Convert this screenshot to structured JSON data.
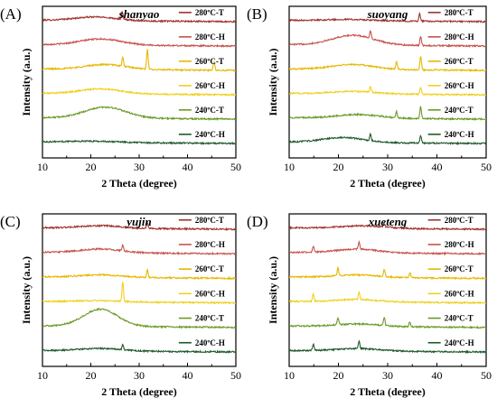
{
  "figure": {
    "x_axis_label": "2 Theta (degree)",
    "y_axis_label": "Intensity (a.u.)",
    "x_ticks": [
      "10",
      "20",
      "30",
      "40",
      "50"
    ]
  },
  "chart_data": [
    {
      "type": "line",
      "panel_label": "(A)",
      "title": "shanyao",
      "xlabel": "2 Theta (degree)",
      "ylabel": "Intensity (a.u.)",
      "xlim": [
        10,
        50
      ],
      "series": [
        {
          "name": "280ºC-T",
          "color": "#a0322d",
          "baseline": 6.0,
          "hump": {
            "center": 21,
            "width": 6,
            "height": 0.15
          },
          "peaks": [
            {
              "x": 26.5,
              "h": 0.3
            }
          ]
        },
        {
          "name": "280ºC-H",
          "color": "#c8524b",
          "baseline": 5.0,
          "hump": {
            "center": 22,
            "width": 6,
            "height": 0.25
          },
          "peaks": []
        },
        {
          "name": "260ºC-T",
          "color": "#e6b800",
          "baseline": 4.0,
          "hump": {
            "center": 23,
            "width": 6,
            "height": 0.2
          },
          "peaks": [
            {
              "x": 26.6,
              "h": 0.35
            },
            {
              "x": 31.7,
              "h": 0.8
            },
            {
              "x": 45.5,
              "h": 0.35
            }
          ]
        },
        {
          "name": "260ºC-H",
          "color": "#f0d020",
          "baseline": 3.0,
          "hump": {
            "center": 22,
            "width": 6,
            "height": 0.2
          },
          "peaks": []
        },
        {
          "name": "240ºC-T",
          "color": "#6a9a28",
          "baseline": 2.0,
          "hump": {
            "center": 23,
            "width": 6,
            "height": 0.45
          },
          "peaks": []
        },
        {
          "name": "240ºC-H",
          "color": "#1e5a2a",
          "baseline": 1.0,
          "hump": {
            "center": 20,
            "width": 8,
            "height": 0.05
          },
          "peaks": []
        }
      ]
    },
    {
      "type": "line",
      "panel_label": "(B)",
      "title": "suoyang",
      "xlabel": "2 Theta (degree)",
      "ylabel": "Intensity (a.u.)",
      "xlim": [
        10,
        50
      ],
      "series": [
        {
          "name": "280ºC-T",
          "color": "#a0322d",
          "baseline": 6.0,
          "hump": {
            "center": 22,
            "width": 6,
            "height": 0.05
          },
          "peaks": [
            {
              "x": 36.5,
              "h": 0.3
            }
          ]
        },
        {
          "name": "280ºC-H",
          "color": "#c8524b",
          "baseline": 5.0,
          "hump": {
            "center": 23,
            "width": 6,
            "height": 0.4
          },
          "peaks": [
            {
              "x": 26.5,
              "h": 0.3
            },
            {
              "x": 36.7,
              "h": 0.35
            }
          ]
        },
        {
          "name": "260ºC-T",
          "color": "#e6b800",
          "baseline": 4.0,
          "hump": {
            "center": 23,
            "width": 6,
            "height": 0.2
          },
          "peaks": [
            {
              "x": 31.8,
              "h": 0.3
            },
            {
              "x": 36.7,
              "h": 0.55
            }
          ]
        },
        {
          "name": "260ºC-H",
          "color": "#f0d020",
          "baseline": 3.0,
          "hump": {
            "center": 23,
            "width": 6,
            "height": 0.1
          },
          "peaks": [
            {
              "x": 26.5,
              "h": 0.25
            },
            {
              "x": 36.7,
              "h": 0.3
            }
          ]
        },
        {
          "name": "240ºC-T",
          "color": "#6a9a28",
          "baseline": 2.0,
          "hump": {
            "center": 24,
            "width": 6,
            "height": 0.15
          },
          "peaks": [
            {
              "x": 31.8,
              "h": 0.25
            },
            {
              "x": 36.7,
              "h": 0.5
            }
          ]
        },
        {
          "name": "240ºC-H",
          "color": "#1e5a2a",
          "baseline": 1.0,
          "hump": {
            "center": 21,
            "width": 6,
            "height": 0.2
          },
          "peaks": [
            {
              "x": 26.5,
              "h": 0.25
            },
            {
              "x": 36.7,
              "h": 0.3
            }
          ]
        }
      ]
    },
    {
      "type": "line",
      "panel_label": "(C)",
      "title": "yujin",
      "xlabel": "2 Theta (degree)",
      "ylabel": "Intensity (a.u.)",
      "xlim": [
        10,
        50
      ],
      "series": [
        {
          "name": "280ºC-T",
          "color": "#a0322d",
          "baseline": 6.0,
          "hump": {
            "center": 22,
            "width": 6,
            "height": 0.1
          },
          "peaks": [
            {
              "x": 31.7,
              "h": 0.25
            }
          ]
        },
        {
          "name": "280ºC-H",
          "color": "#c8524b",
          "baseline": 5.0,
          "hump": {
            "center": 22,
            "width": 6,
            "height": 0.15
          },
          "peaks": [
            {
              "x": 26.6,
              "h": 0.25
            }
          ]
        },
        {
          "name": "260ºC-T",
          "color": "#e6b800",
          "baseline": 4.0,
          "hump": {
            "center": 22,
            "width": 6,
            "height": 0.1
          },
          "peaks": [
            {
              "x": 31.7,
              "h": 0.3
            }
          ]
        },
        {
          "name": "260ºC-H",
          "color": "#f0d020",
          "baseline": 3.0,
          "hump": {
            "center": 22,
            "width": 6,
            "height": 0.05
          },
          "peaks": [
            {
              "x": 26.6,
              "h": 0.8
            }
          ]
        },
        {
          "name": "240ºC-T",
          "color": "#6a9a28",
          "baseline": 2.0,
          "hump": {
            "center": 22,
            "width": 5,
            "height": 0.7
          },
          "peaks": []
        },
        {
          "name": "240ºC-H",
          "color": "#1e5a2a",
          "baseline": 1.0,
          "hump": {
            "center": 22,
            "width": 6,
            "height": 0.1
          },
          "peaks": [
            {
              "x": 26.6,
              "h": 0.2
            }
          ]
        }
      ]
    },
    {
      "type": "line",
      "panel_label": "(D)",
      "title": "xueteng",
      "xlabel": "2 Theta (degree)",
      "ylabel": "Intensity (a.u.)",
      "xlim": [
        10,
        50
      ],
      "series": [
        {
          "name": "280ºC-T",
          "color": "#a0322d",
          "baseline": 6.0,
          "hump": {
            "center": 25,
            "width": 6,
            "height": 0.1
          },
          "peaks": [
            {
              "x": 29.3,
              "h": 0.15
            }
          ]
        },
        {
          "name": "280ºC-H",
          "color": "#c8524b",
          "baseline": 5.0,
          "hump": {
            "center": 24,
            "width": 6,
            "height": 0.15
          },
          "peaks": [
            {
              "x": 14.9,
              "h": 0.25
            },
            {
              "x": 24.2,
              "h": 0.3
            }
          ]
        },
        {
          "name": "260ºC-T",
          "color": "#e6b800",
          "baseline": 4.0,
          "hump": {
            "center": 24,
            "width": 6,
            "height": 0.1
          },
          "peaks": [
            {
              "x": 19.9,
              "h": 0.3
            },
            {
              "x": 29.3,
              "h": 0.3
            },
            {
              "x": 34.5,
              "h": 0.2
            }
          ]
        },
        {
          "name": "260ºC-H",
          "color": "#f0d020",
          "baseline": 3.0,
          "hump": {
            "center": 24,
            "width": 6,
            "height": 0.1
          },
          "peaks": [
            {
              "x": 14.9,
              "h": 0.3
            },
            {
              "x": 24.2,
              "h": 0.3
            }
          ]
        },
        {
          "name": "240ºC-T",
          "color": "#6a9a28",
          "baseline": 2.0,
          "hump": {
            "center": 24,
            "width": 6,
            "height": 0.1
          },
          "peaks": [
            {
              "x": 19.9,
              "h": 0.3
            },
            {
              "x": 29.3,
              "h": 0.35
            },
            {
              "x": 34.5,
              "h": 0.2
            }
          ]
        },
        {
          "name": "240ºC-H",
          "color": "#1e5a2a",
          "baseline": 1.0,
          "hump": {
            "center": 24,
            "width": 6,
            "height": 0.1
          },
          "peaks": [
            {
              "x": 14.9,
              "h": 0.25
            },
            {
              "x": 24.2,
              "h": 0.3
            }
          ]
        }
      ]
    }
  ]
}
